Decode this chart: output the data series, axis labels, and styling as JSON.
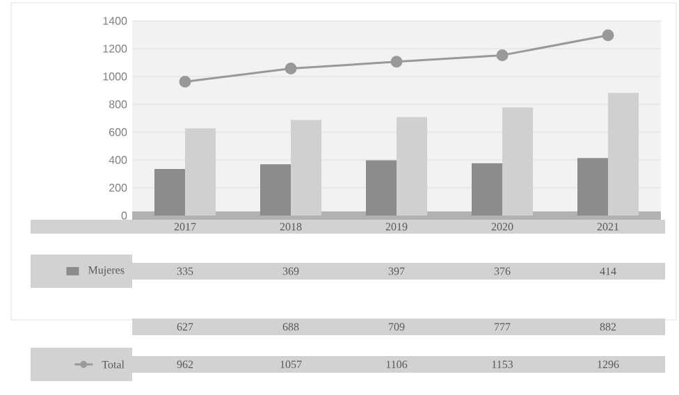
{
  "chart_data": {
    "type": "bar",
    "categories": [
      "2017",
      "2018",
      "2019",
      "2020",
      "2021"
    ],
    "series": [
      {
        "name": "Mujeres",
        "color": "#8c8c8c",
        "values": [
          335,
          369,
          397,
          376,
          414
        ]
      },
      {
        "color": "#d0d0d0",
        "values": [
          627,
          688,
          709,
          777,
          882
        ]
      },
      {
        "name": "Total",
        "type": "line",
        "color": "#999999",
        "marker": "circle",
        "line_style": "solid",
        "values": [
          962,
          1057,
          1106,
          1153,
          1296
        ]
      }
    ],
    "ylim": [
      0,
      1400
    ],
    "yticks": [
      0,
      200,
      400,
      600,
      800,
      1000,
      1200,
      1400
    ],
    "grid": "y",
    "data_labels": true,
    "legend": "bottom left"
  }
}
